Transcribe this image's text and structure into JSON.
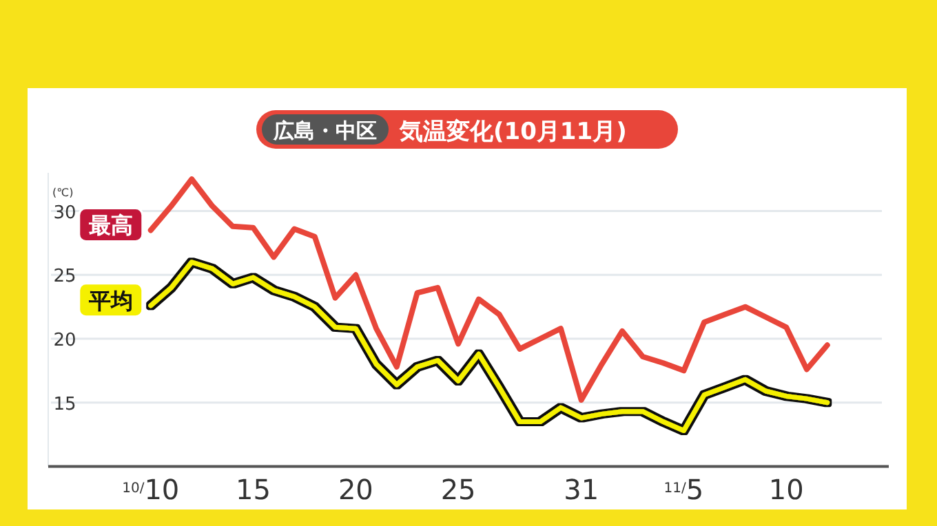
{
  "chart_data": {
    "type": "line",
    "title": "気温変化(10月11月)",
    "subtitle": "広島・中区",
    "ylabel": "(℃)",
    "x": [
      "--10-10",
      "--10-11",
      "--10-12",
      "--10-13",
      "--10-14",
      "--10-15",
      "--10-16",
      "--10-17",
      "--10-18",
      "--10-19",
      "--10-20",
      "--10-21",
      "--10-22",
      "--10-23",
      "--10-24",
      "--10-25",
      "--10-26",
      "--10-27",
      "--10-28",
      "--10-29",
      "--10-30",
      "--10-31",
      "--11-01",
      "--11-02",
      "--11-03",
      "--11-04",
      "--11-05",
      "--11-06",
      "--11-07",
      "--11-08",
      "--11-09",
      "--11-10",
      "--11-11",
      "--11-12"
    ],
    "series": [
      {
        "name": "最高",
        "color": "#e8463a",
        "values": [
          28.5,
          30.4,
          32.5,
          30.4,
          28.8,
          28.7,
          26.4,
          28.6,
          28.0,
          23.2,
          25.0,
          20.8,
          17.8,
          23.6,
          24.0,
          19.6,
          23.1,
          21.9,
          19.2,
          20.0,
          20.8,
          15.2,
          18.0,
          20.6,
          18.6,
          18.1,
          17.5,
          21.3,
          21.9,
          22.5,
          21.7,
          20.9,
          17.6,
          19.5
        ]
      },
      {
        "name": "平均",
        "color": "#f5f000",
        "values": [
          22.6,
          24.0,
          26.0,
          25.5,
          24.3,
          24.8,
          23.8,
          23.3,
          22.5,
          20.9,
          20.8,
          18.0,
          16.4,
          17.8,
          18.3,
          16.7,
          18.8,
          16.2,
          13.5,
          13.5,
          14.6,
          13.8,
          14.1,
          14.3,
          14.3,
          13.5,
          12.8,
          15.6,
          16.2,
          16.8,
          15.9,
          15.5,
          15.3,
          15.0
        ]
      }
    ],
    "xlim": [
      "--10-05",
      "--11-15"
    ],
    "xticks": [
      {
        "value": "--10-10",
        "label": "$^{10/}$10"
      },
      {
        "value": "--10-15",
        "label": "15"
      },
      {
        "value": "--10-20",
        "label": "20"
      },
      {
        "value": "--10-25",
        "label": "25"
      },
      {
        "value": "--10-31",
        "label": "31"
      },
      {
        "value": "--11-05",
        "label": "$^{11/}$5"
      },
      {
        "value": "--11-10",
        "label": "10"
      }
    ],
    "ylim": [
      10,
      33
    ],
    "yticks": [
      15,
      20,
      25,
      30
    ],
    "grid": "y",
    "legend": "left",
    "marker": "none",
    "line_style": "solid"
  }
}
